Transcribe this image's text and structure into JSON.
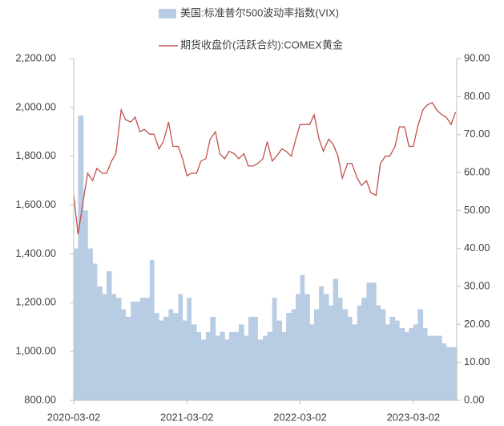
{
  "chart_data": {
    "type": "combo",
    "x": [
      "2020-03-02",
      "2020-03-16",
      "2020-04-02",
      "2020-04-16",
      "2020-05-02",
      "2020-05-16",
      "2020-06-02",
      "2020-06-16",
      "2020-07-02",
      "2020-07-16",
      "2020-08-02",
      "2020-08-16",
      "2020-09-02",
      "2020-09-16",
      "2020-10-02",
      "2020-10-16",
      "2020-11-02",
      "2020-11-16",
      "2020-12-02",
      "2020-12-16",
      "2021-01-02",
      "2021-01-16",
      "2021-02-02",
      "2021-02-16",
      "2021-03-02",
      "2021-03-16",
      "2021-04-02",
      "2021-04-16",
      "2021-05-02",
      "2021-05-16",
      "2021-06-02",
      "2021-06-16",
      "2021-07-02",
      "2021-07-16",
      "2021-08-02",
      "2021-08-16",
      "2021-09-02",
      "2021-09-16",
      "2021-10-02",
      "2021-10-16",
      "2021-11-02",
      "2021-11-16",
      "2021-12-02",
      "2021-12-16",
      "2022-01-02",
      "2022-01-16",
      "2022-02-02",
      "2022-02-16",
      "2022-03-02",
      "2022-03-16",
      "2022-04-02",
      "2022-04-16",
      "2022-05-02",
      "2022-05-16",
      "2022-06-02",
      "2022-06-16",
      "2022-07-02",
      "2022-07-16",
      "2022-08-02",
      "2022-08-16",
      "2022-09-02",
      "2022-09-16",
      "2022-10-02",
      "2022-10-16",
      "2022-11-02",
      "2022-11-16",
      "2022-12-02",
      "2022-12-16",
      "2023-01-02",
      "2023-01-16",
      "2023-02-02",
      "2023-02-16",
      "2023-03-02",
      "2023-03-16",
      "2023-04-02",
      "2023-04-16",
      "2023-05-02",
      "2023-05-16",
      "2023-06-02",
      "2023-06-16",
      "2023-07-02",
      "2023-07-16"
    ],
    "series": [
      {
        "name": "美国:标准普尔500波动率指数(VIX)",
        "type": "area",
        "axis": "y2",
        "color": "#b8cce4",
        "values": [
          40,
          75,
          50,
          40,
          36,
          30,
          28,
          34,
          28,
          27,
          24,
          22,
          26,
          26,
          27,
          27,
          37,
          23,
          21,
          22,
          24,
          23,
          28,
          21,
          27,
          20,
          18,
          16,
          18,
          22,
          17,
          18,
          16,
          18,
          18,
          20,
          17,
          22,
          22,
          16,
          17,
          18,
          27,
          21,
          18,
          23,
          24,
          28,
          33,
          28,
          20,
          24,
          30,
          28,
          25,
          32,
          27,
          24,
          22,
          20,
          25,
          27,
          31,
          31,
          25,
          24,
          20,
          22,
          21,
          19,
          18,
          19,
          20,
          24,
          19,
          17,
          17,
          17,
          15,
          14,
          14,
          14
        ]
      },
      {
        "name": "期货收盘价(活跃合约):COMEX黄金",
        "type": "line",
        "color": "#c0504d",
        "values": [
          1640,
          1480,
          1620,
          1730,
          1700,
          1750,
          1730,
          1730,
          1780,
          1810,
          1990,
          1950,
          1940,
          1960,
          1900,
          1910,
          1890,
          1890,
          1830,
          1860,
          1940,
          1840,
          1840,
          1790,
          1720,
          1730,
          1730,
          1780,
          1790,
          1870,
          1900,
          1810,
          1790,
          1820,
          1810,
          1790,
          1810,
          1760,
          1760,
          1770,
          1790,
          1860,
          1780,
          1800,
          1830,
          1820,
          1800,
          1870,
          1930,
          1930,
          1930,
          1970,
          1870,
          1820,
          1870,
          1850,
          1800,
          1710,
          1770,
          1770,
          1710,
          1680,
          1700,
          1650,
          1640,
          1770,
          1800,
          1800,
          1840,
          1920,
          1920,
          1840,
          1840,
          1920,
          1990,
          2010,
          2020,
          1990,
          1970,
          1960,
          1930,
          1980
        ]
      }
    ],
    "xlim": [
      "2020-03-02",
      "2023-07-20"
    ],
    "xticks": [
      "2020-03-02",
      "2021-03-02",
      "2022-03-02",
      "2023-03-02"
    ],
    "ylim": [
      800,
      2200
    ],
    "yticks": [
      {
        "value": 800,
        "label": "800.00"
      },
      {
        "value": 1000,
        "label": "1,000.00"
      },
      {
        "value": 1200,
        "label": "1,200.00"
      },
      {
        "value": 1400,
        "label": "1,400.00"
      },
      {
        "value": 1600,
        "label": "1,600.00"
      },
      {
        "value": 1800,
        "label": "1,800.00"
      },
      {
        "value": 2000,
        "label": "2,000.00"
      },
      {
        "value": 2200,
        "label": "2,200.00"
      }
    ],
    "y2lim": [
      0,
      90
    ],
    "y2ticks": [
      {
        "value": 0,
        "label": "0.00"
      },
      {
        "value": 10,
        "label": "10.00"
      },
      {
        "value": 20,
        "label": "20.00"
      },
      {
        "value": 30,
        "label": "30.00"
      },
      {
        "value": 40,
        "label": "40.00"
      },
      {
        "value": 50,
        "label": "50.00"
      },
      {
        "value": 60,
        "label": "60.00"
      },
      {
        "value": 70,
        "label": "70.00"
      },
      {
        "value": 80,
        "label": "80.00"
      },
      {
        "value": 90,
        "label": "90.00"
      }
    ]
  }
}
